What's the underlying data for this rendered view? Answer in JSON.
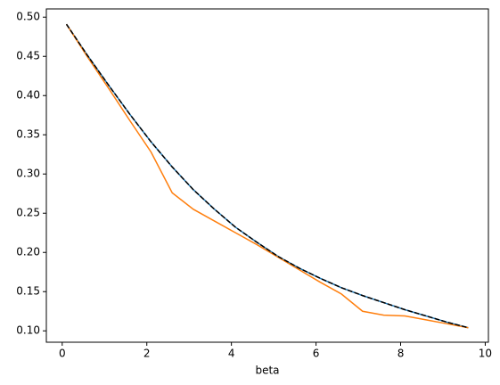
{
  "chart_data": {
    "type": "line",
    "xlabel": "beta",
    "x": [
      0.1,
      0.6,
      1.1,
      1.6,
      2.1,
      2.6,
      3.1,
      3.6,
      4.1,
      4.6,
      5.1,
      5.6,
      6.1,
      6.6,
      7.1,
      7.6,
      8.1,
      8.6,
      9.1,
      9.6
    ],
    "series": [
      {
        "color": "#1f77b4",
        "dashed": false,
        "values": [
          0.491,
          0.451,
          0.413,
          0.376,
          0.341,
          0.309,
          0.28,
          0.255,
          0.232,
          0.213,
          0.195,
          0.18,
          0.167,
          0.155,
          0.145,
          0.136,
          0.127,
          0.119,
          0.111,
          0.104
        ]
      },
      {
        "color": "#ff7f0e",
        "dashed": false,
        "values": [
          0.491,
          0.449,
          0.409,
          0.368,
          0.328,
          0.276,
          0.255,
          0.24,
          0.225,
          0.21,
          0.194,
          0.178,
          0.162,
          0.147,
          0.125,
          0.12,
          0.119,
          0.114,
          0.109,
          0.104
        ]
      },
      {
        "color": "#000000",
        "dashed": true,
        "values": [
          0.491,
          0.451,
          0.413,
          0.376,
          0.341,
          0.309,
          0.28,
          0.255,
          0.232,
          0.213,
          0.195,
          0.18,
          0.167,
          0.155,
          0.145,
          0.136,
          0.127,
          0.119,
          0.111,
          0.104
        ]
      }
    ],
    "xlim": [
      -0.375,
      10.075
    ],
    "ylim": [
      0.0855,
      0.5105
    ],
    "xticks": [
      0,
      2,
      4,
      6,
      8,
      10
    ],
    "yticks": [
      {
        "value": 0.1,
        "label": "0.10"
      },
      {
        "value": 0.15,
        "label": "0.15"
      },
      {
        "value": 0.2,
        "label": "0.20"
      },
      {
        "value": 0.25,
        "label": "0.25"
      },
      {
        "value": 0.3,
        "label": "0.30"
      },
      {
        "value": 0.35,
        "label": "0.35"
      },
      {
        "value": 0.4,
        "label": "0.40"
      },
      {
        "value": 0.45,
        "label": "0.45"
      },
      {
        "value": 0.5,
        "label": "0.50"
      }
    ],
    "grid": false
  }
}
